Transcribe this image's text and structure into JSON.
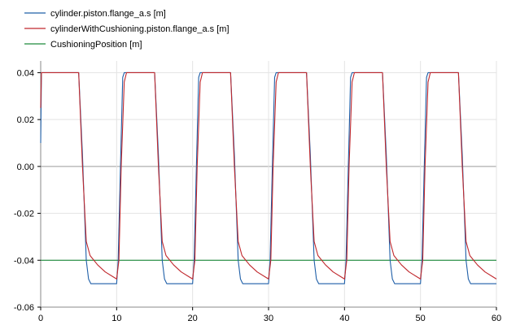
{
  "chart_data": {
    "type": "line",
    "xlim": [
      0,
      60
    ],
    "ylim": [
      -0.06,
      0.045
    ],
    "x_ticks": [
      0,
      10,
      20,
      30,
      40,
      50,
      60
    ],
    "x_tick_labels": [
      "0",
      "10",
      "20",
      "30",
      "40",
      "50",
      "60"
    ],
    "y_ticks": [
      0.04,
      0.02,
      0.0,
      -0.02,
      -0.04,
      -0.06
    ],
    "y_tick_labels": [
      "0.04",
      "0.02",
      "0.00",
      "-0.02",
      "-0.04",
      "-0.06"
    ],
    "grid": true,
    "legend_position": "top-left",
    "series": [
      {
        "name": "cylinder.piston.flange_a.s [m]",
        "color": "#1f5fa8",
        "x": [
          0,
          0.1,
          0.3,
          5.0,
          5.5,
          6.0,
          6.3,
          6.6,
          10.0,
          10.2,
          10.5,
          10.8,
          11.0,
          15.0,
          15.5,
          16.0,
          16.3,
          16.6,
          20.0,
          20.2,
          20.5,
          20.8,
          21.0,
          25.0,
          25.5,
          26.0,
          26.3,
          26.6,
          30.0,
          30.2,
          30.5,
          30.8,
          31.0,
          35.0,
          35.5,
          36.0,
          36.3,
          36.6,
          40.0,
          40.2,
          40.5,
          40.8,
          41.0,
          45.0,
          45.5,
          46.0,
          46.3,
          46.6,
          50.0,
          50.2,
          50.5,
          50.8,
          51.0,
          55.0,
          55.5,
          56.0,
          56.3,
          56.6,
          60.0
        ],
        "y": [
          0.01,
          0.04,
          0.04,
          0.04,
          0.005,
          -0.04,
          -0.048,
          -0.05,
          -0.05,
          -0.04,
          0.0,
          0.038,
          0.04,
          0.04,
          0.005,
          -0.04,
          -0.048,
          -0.05,
          -0.05,
          -0.04,
          0.0,
          0.038,
          0.04,
          0.04,
          0.005,
          -0.04,
          -0.048,
          -0.05,
          -0.05,
          -0.04,
          0.0,
          0.038,
          0.04,
          0.04,
          0.005,
          -0.04,
          -0.048,
          -0.05,
          -0.05,
          -0.04,
          0.0,
          0.038,
          0.04,
          0.04,
          0.005,
          -0.04,
          -0.048,
          -0.05,
          -0.05,
          -0.04,
          0.0,
          0.038,
          0.04,
          0.04,
          0.005,
          -0.04,
          -0.048,
          -0.05,
          -0.05
        ]
      },
      {
        "name": "cylinderWithCushioning.piston.flange_a.s [m]",
        "color": "#c0282d",
        "x": [
          0,
          0.1,
          0.3,
          5.0,
          5.5,
          6.0,
          6.5,
          7.5,
          8.5,
          9.5,
          10.0,
          10.3,
          10.6,
          11.0,
          11.3,
          15.0,
          15.5,
          16.0,
          16.5,
          17.5,
          18.5,
          19.5,
          20.0,
          20.3,
          20.6,
          21.0,
          21.3,
          25.0,
          25.5,
          26.0,
          26.5,
          27.5,
          28.5,
          29.5,
          30.0,
          30.3,
          30.6,
          31.0,
          31.3,
          35.0,
          35.5,
          36.0,
          36.5,
          37.5,
          38.5,
          39.5,
          40.0,
          40.3,
          40.6,
          41.0,
          41.3,
          45.0,
          45.5,
          46.0,
          46.5,
          47.5,
          48.5,
          49.5,
          50.0,
          50.3,
          50.6,
          51.0,
          51.3,
          55.0,
          55.5,
          56.0,
          56.5,
          57.5,
          58.5,
          59.5,
          60.0
        ],
        "y": [
          0.025,
          0.04,
          0.04,
          0.04,
          0.0,
          -0.032,
          -0.038,
          -0.042,
          -0.045,
          -0.047,
          -0.048,
          -0.04,
          0.0,
          0.036,
          0.04,
          0.04,
          0.0,
          -0.032,
          -0.038,
          -0.042,
          -0.045,
          -0.047,
          -0.048,
          -0.04,
          0.0,
          0.036,
          0.04,
          0.04,
          0.0,
          -0.032,
          -0.038,
          -0.042,
          -0.045,
          -0.047,
          -0.048,
          -0.04,
          0.0,
          0.036,
          0.04,
          0.04,
          0.0,
          -0.032,
          -0.038,
          -0.042,
          -0.045,
          -0.047,
          -0.048,
          -0.04,
          0.0,
          0.036,
          0.04,
          0.04,
          0.0,
          -0.032,
          -0.038,
          -0.042,
          -0.045,
          -0.047,
          -0.048,
          -0.04,
          0.0,
          0.036,
          0.04,
          0.04,
          0.0,
          -0.032,
          -0.038,
          -0.042,
          -0.045,
          -0.047,
          -0.048
        ]
      },
      {
        "name": "CushioningPosition [m]",
        "color": "#1e8a3c",
        "x": [
          0,
          60
        ],
        "y": [
          -0.04,
          -0.04
        ]
      }
    ]
  }
}
